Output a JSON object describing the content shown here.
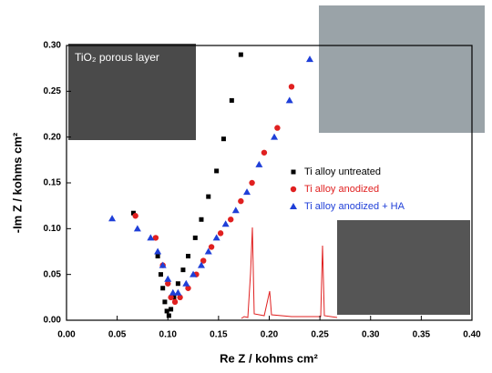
{
  "chart_data": {
    "type": "scatter",
    "xlabel": "Re Z / kohms cm²",
    "ylabel": "-Im Z / kohms cm²",
    "inset_label": "TiO₂ porous layer",
    "xlim": [
      0,
      0.4
    ],
    "ylim": [
      0,
      0.3
    ],
    "xticks": [
      {
        "value": 0,
        "label": "0.00"
      },
      {
        "value": 0.05,
        "label": "0.05"
      },
      {
        "value": 0.1,
        "label": "0.10"
      },
      {
        "value": 0.15,
        "label": "0.15"
      },
      {
        "value": 0.2,
        "label": "0.20"
      },
      {
        "value": 0.25,
        "label": "0.25"
      },
      {
        "value": 0.3,
        "label": "0.30"
      },
      {
        "value": 0.35,
        "label": "0.35"
      },
      {
        "value": 0.4,
        "label": "0.40"
      }
    ],
    "yticks": [
      {
        "value": 0,
        "label": "0.00"
      },
      {
        "value": 0.05,
        "label": "0.05"
      },
      {
        "value": 0.1,
        "label": "0.10"
      },
      {
        "value": 0.15,
        "label": "0.15"
      },
      {
        "value": 0.2,
        "label": "0.20"
      },
      {
        "value": 0.25,
        "label": "0.25"
      },
      {
        "value": 0.3,
        "label": "0.30"
      }
    ],
    "legend": "right",
    "series": [
      {
        "name": "Ti alloy untreated",
        "color": "#000000",
        "marker": "square",
        "x": [
          0.066,
          0.09,
          0.093,
          0.095,
          0.097,
          0.099,
          0.101,
          0.103,
          0.106,
          0.11,
          0.115,
          0.12,
          0.127,
          0.133,
          0.14,
          0.148,
          0.155,
          0.163,
          0.172
        ],
        "values": [
          0.117,
          0.07,
          0.05,
          0.035,
          0.02,
          0.01,
          0.005,
          0.012,
          0.025,
          0.04,
          0.055,
          0.07,
          0.09,
          0.11,
          0.135,
          0.163,
          0.198,
          0.24,
          0.29
        ]
      },
      {
        "name": "Ti alloy anodized",
        "color": "#e02020",
        "marker": "circle",
        "x": [
          0.068,
          0.088,
          0.095,
          0.1,
          0.103,
          0.107,
          0.112,
          0.12,
          0.128,
          0.135,
          0.143,
          0.152,
          0.162,
          0.172,
          0.183,
          0.195,
          0.208,
          0.222
        ],
        "values": [
          0.114,
          0.09,
          0.06,
          0.04,
          0.025,
          0.02,
          0.025,
          0.035,
          0.05,
          0.065,
          0.08,
          0.095,
          0.11,
          0.13,
          0.15,
          0.183,
          0.21,
          0.255
        ]
      },
      {
        "name": "Ti alloy anodized + HA",
        "color": "#1f3fd8",
        "marker": "triangle",
        "x": [
          0.045,
          0.07,
          0.083,
          0.09,
          0.095,
          0.1,
          0.105,
          0.11,
          0.118,
          0.125,
          0.133,
          0.14,
          0.148,
          0.157,
          0.167,
          0.178,
          0.19,
          0.205,
          0.22,
          0.24
        ],
        "values": [
          0.111,
          0.1,
          0.09,
          0.075,
          0.06,
          0.045,
          0.03,
          0.03,
          0.04,
          0.05,
          0.06,
          0.075,
          0.09,
          0.105,
          0.12,
          0.14,
          0.17,
          0.2,
          0.24,
          0.285
        ]
      }
    ]
  }
}
